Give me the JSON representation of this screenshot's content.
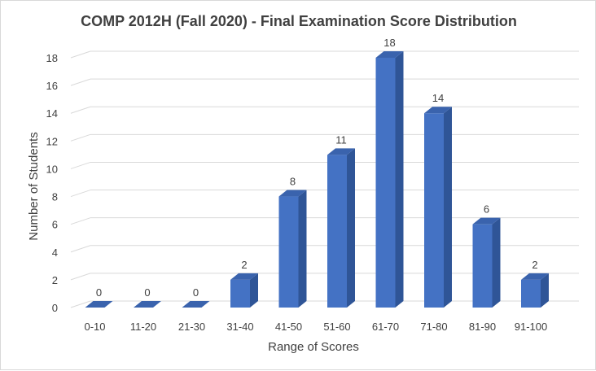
{
  "chart_data": {
    "type": "bar",
    "title": "COMP 2012H (Fall 2020) - Final Examination Score Distribution",
    "xlabel": "Range of Scores",
    "ylabel": "Number of Students",
    "categories": [
      "0-10",
      "11-20",
      "21-30",
      "31-40",
      "41-50",
      "51-60",
      "61-70",
      "71-80",
      "81-90",
      "91-100"
    ],
    "values": [
      0,
      0,
      0,
      2,
      8,
      11,
      18,
      14,
      6,
      2
    ],
    "ylim": [
      0,
      18
    ],
    "yticks": [
      0,
      2,
      4,
      6,
      8,
      10,
      12,
      14,
      16,
      18
    ],
    "grid": true,
    "legend": "none",
    "style": "3d-column",
    "colors": {
      "bar_front": "#4472C4",
      "bar_side": "#2F5597",
      "bar_top": "#3A63AD",
      "grid": "#d9d9d9",
      "text": "#404040"
    }
  }
}
